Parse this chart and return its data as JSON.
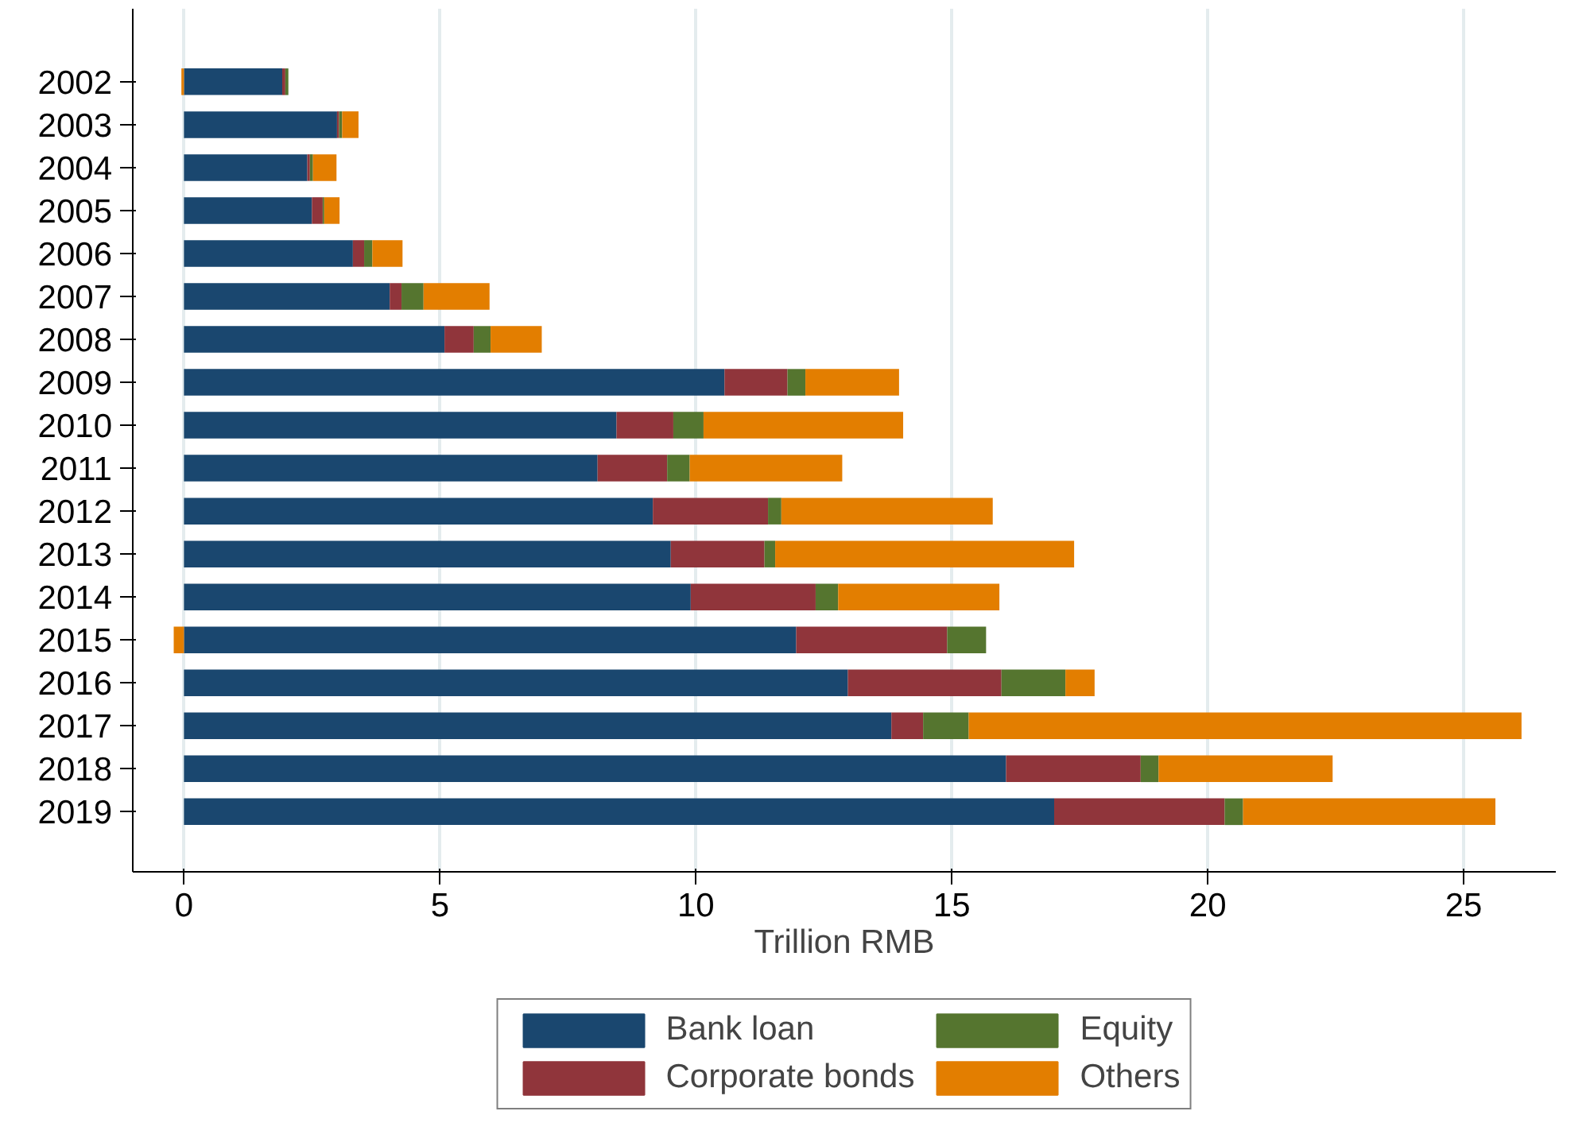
{
  "chart_data": {
    "type": "bar",
    "orientation": "horizontal",
    "stacked": true,
    "xlabel": "Trillion RMB",
    "categories": [
      "2002",
      "2003",
      "2004",
      "2005",
      "2006",
      "2007",
      "2008",
      "2009",
      "2010",
      "2011",
      "2012",
      "2013",
      "2014",
      "2015",
      "2016",
      "2017",
      "2018",
      "2019"
    ],
    "series": [
      {
        "name": "Bank loan",
        "color": "#1a476f",
        "values": [
          1.92,
          2.99,
          2.41,
          2.5,
          3.3,
          4.02,
          5.09,
          10.56,
          8.45,
          8.08,
          9.16,
          9.51,
          9.9,
          11.96,
          12.97,
          13.82,
          16.06,
          17.0
        ]
      },
      {
        "name": "Corporate bonds",
        "color": "#90353b",
        "values": [
          0.06,
          0.04,
          0.05,
          0.21,
          0.22,
          0.23,
          0.57,
          1.23,
          1.11,
          1.36,
          2.25,
          1.83,
          2.44,
          2.95,
          3.0,
          0.62,
          2.63,
          3.33
        ]
      },
      {
        "name": "Equity",
        "color": "#55752f",
        "values": [
          0.06,
          0.06,
          0.06,
          0.03,
          0.16,
          0.43,
          0.33,
          0.35,
          0.59,
          0.44,
          0.26,
          0.21,
          0.44,
          0.76,
          1.25,
          0.89,
          0.35,
          0.36
        ]
      },
      {
        "name": "Others",
        "color": "#e37e00",
        "values": [
          -0.05,
          0.32,
          0.46,
          0.3,
          0.59,
          1.29,
          1.0,
          1.83,
          3.9,
          2.98,
          4.13,
          5.84,
          3.15,
          -0.2,
          0.57,
          10.8,
          3.4,
          4.93
        ]
      }
    ],
    "xlim": [
      -1,
      26.8
    ],
    "xticks": [
      0,
      5,
      10,
      15,
      20,
      25
    ],
    "grid": "x",
    "legend": "bottom"
  }
}
